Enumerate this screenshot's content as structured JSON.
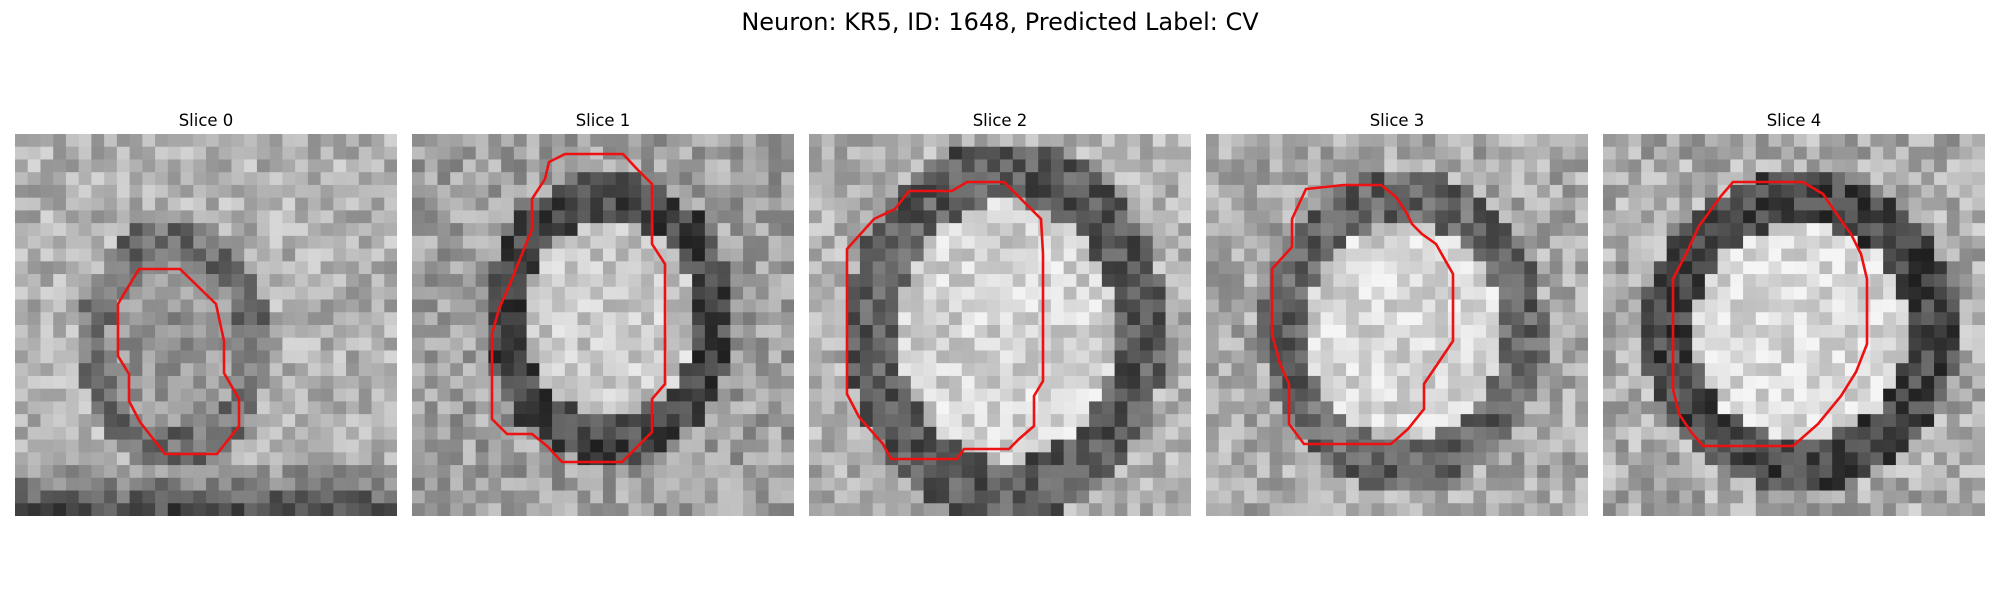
{
  "figure": {
    "title": "Neuron: KR5, ID: 1648, Predicted Label: CV"
  },
  "panels": [
    {
      "title": "Slice 0"
    },
    {
      "title": "Slice 1"
    },
    {
      "title": "Slice 2"
    },
    {
      "title": "Slice 3"
    },
    {
      "title": "Slice 4"
    }
  ],
  "colors": {
    "contour": "#ee1111",
    "background": "#ffffff",
    "text": "#000000"
  }
}
